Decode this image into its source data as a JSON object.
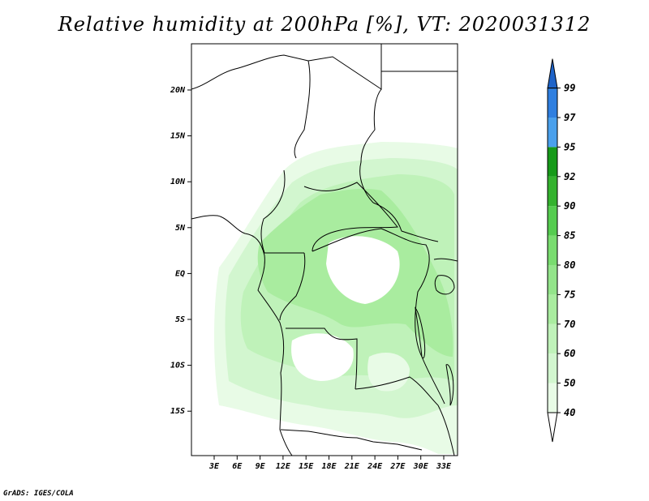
{
  "title": "Relative humidity at 200hPa [%], VT: 2020031312",
  "credit": "GrADS: IGES/COLA",
  "lat_labels": [
    "20N",
    "15N",
    "10N",
    "5N",
    "EQ",
    "5S",
    "10S",
    "15S"
  ],
  "lon_labels": [
    "3E",
    "6E",
    "9E",
    "12E",
    "15E",
    "18E",
    "21E",
    "24E",
    "27E",
    "30E",
    "33E"
  ],
  "colorbar": {
    "levels": [
      "40",
      "50",
      "60",
      "70",
      "75",
      "80",
      "85",
      "90",
      "92",
      "95",
      "97",
      "99"
    ],
    "colors": [
      "#e8fbe6",
      "#d2f6cf",
      "#bff2b9",
      "#a9ec9f",
      "#93e48a",
      "#79dc6f",
      "#55cc4f",
      "#34b22e",
      "#169a19",
      "#4aa0ec",
      "#2f7fe0",
      "#1e63c8"
    ],
    "top_color": "#1e63c8",
    "bottom_color": "#ffffff"
  }
}
